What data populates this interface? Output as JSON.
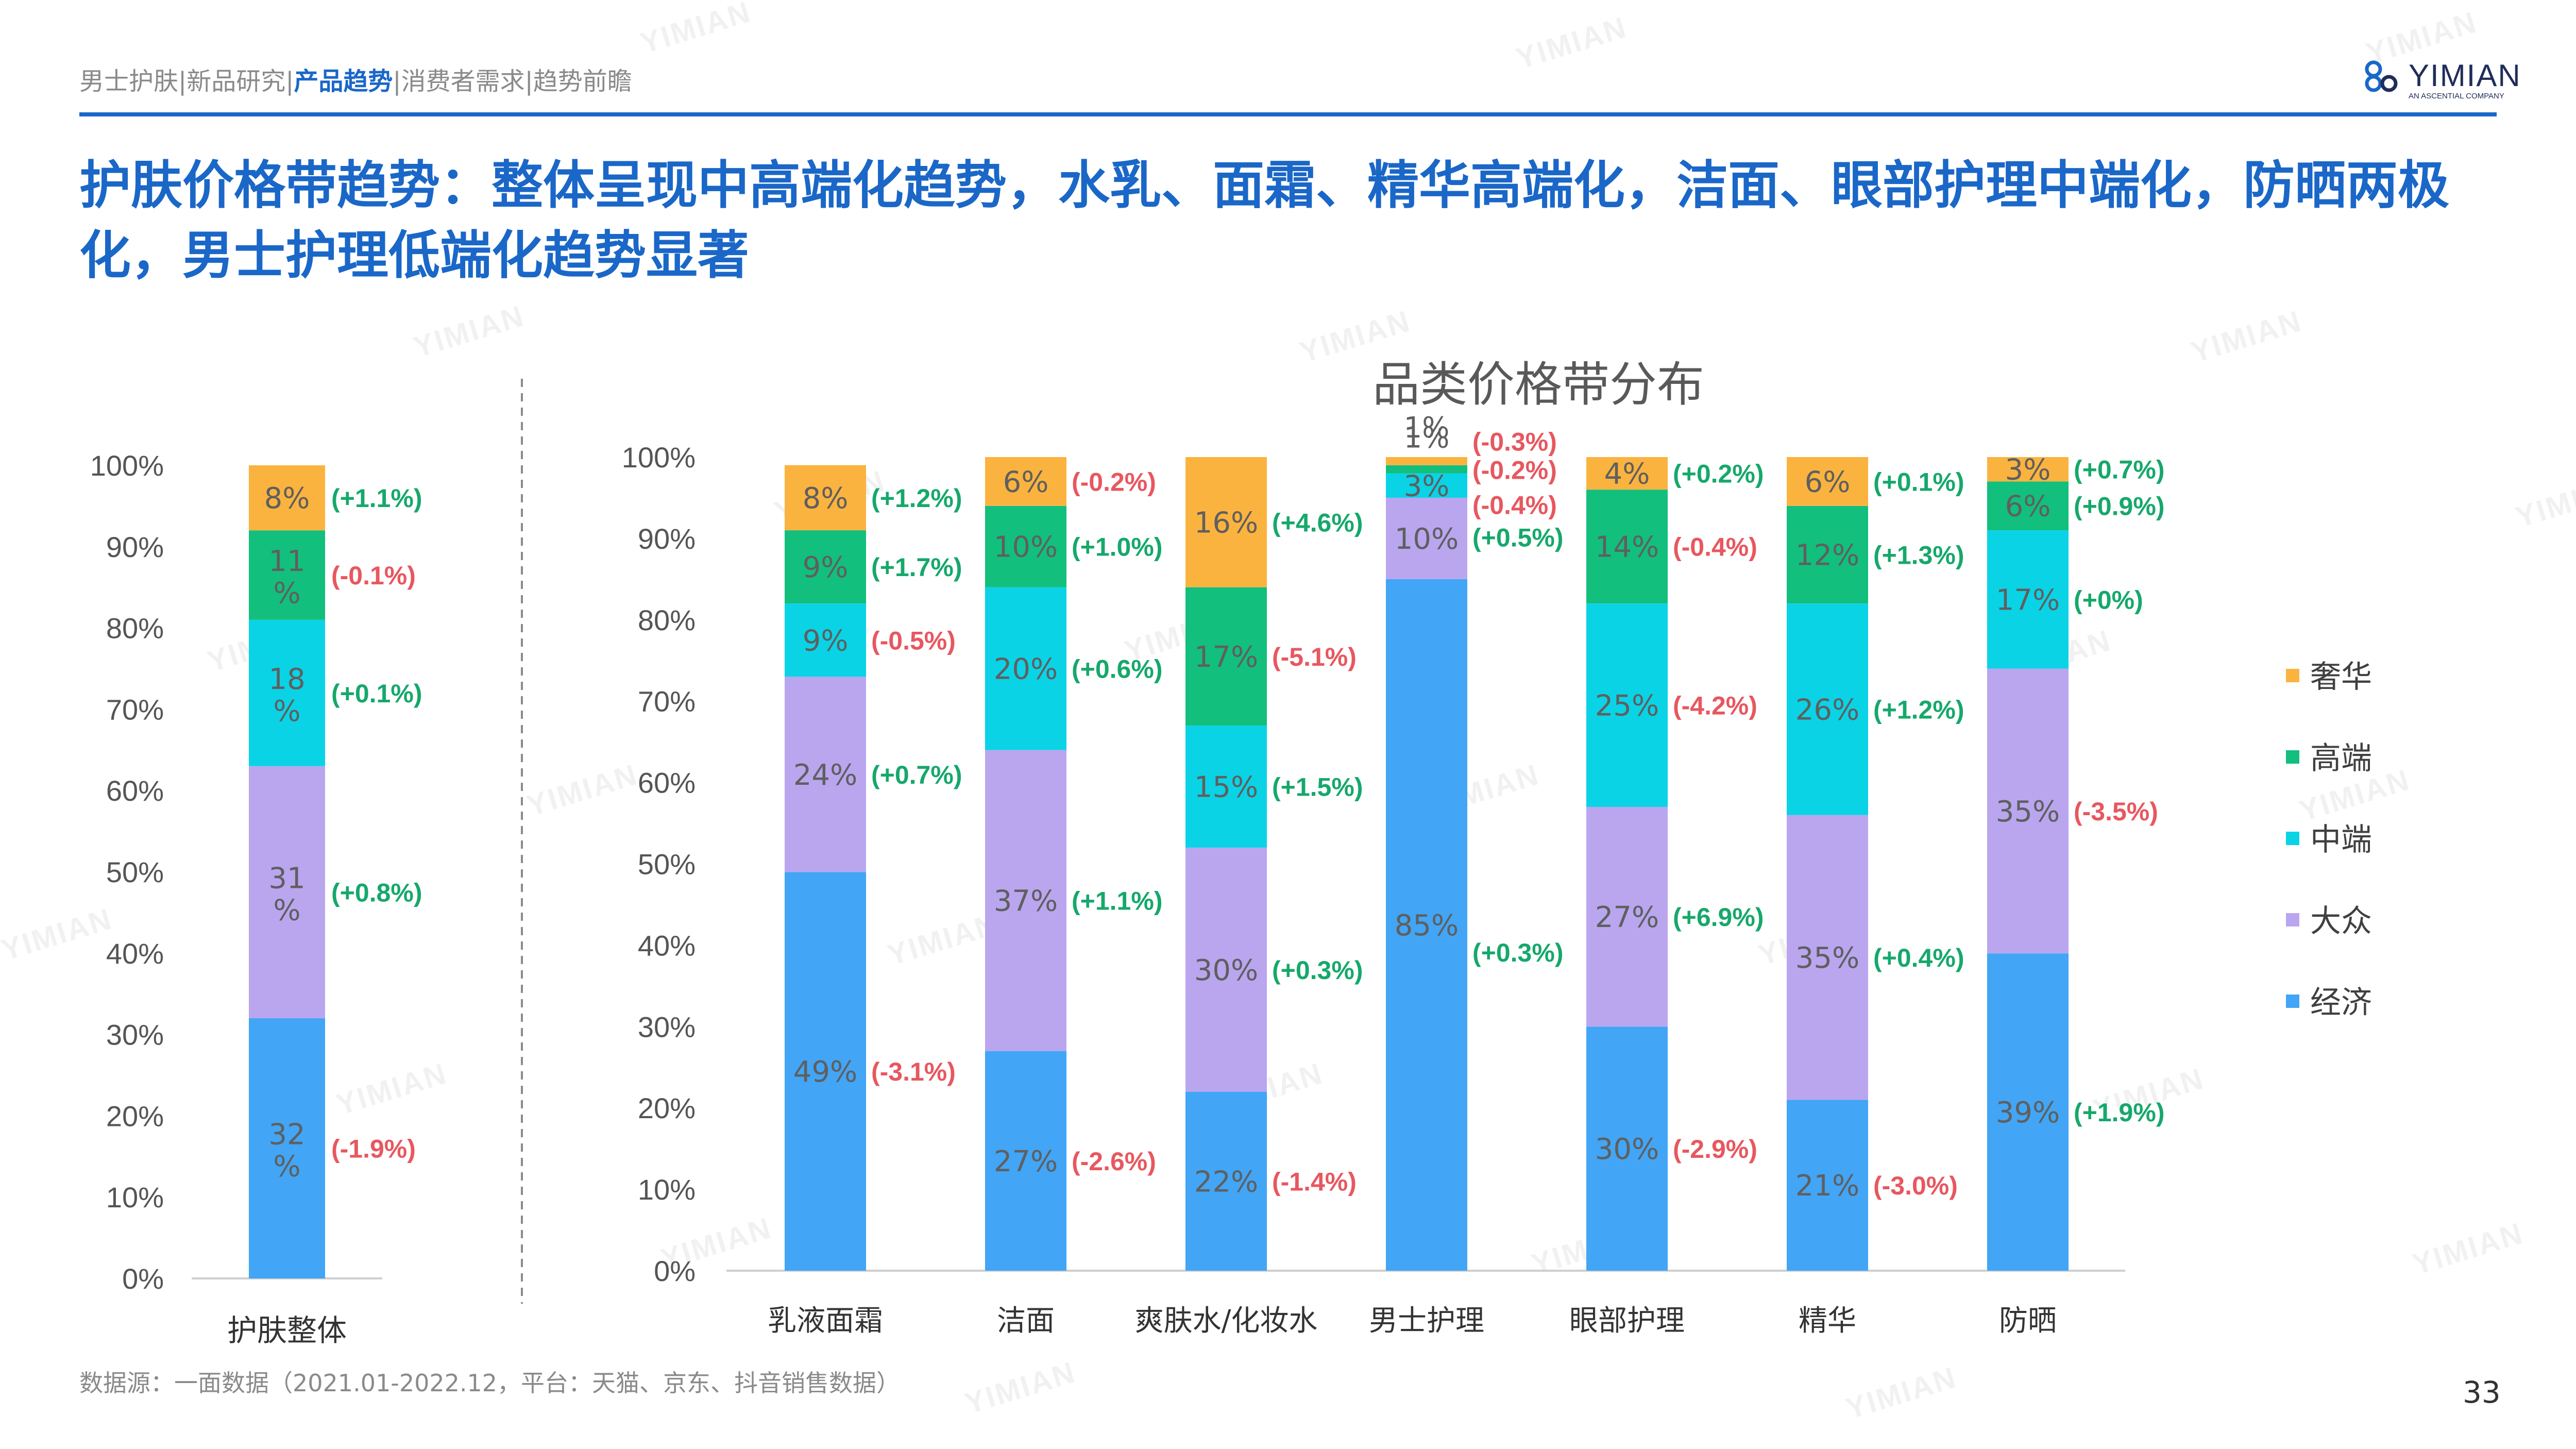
{
  "header": {
    "breadcrumb": [
      "男士护肤",
      "新品研究",
      "产品趋势",
      "消费者需求",
      "趋势前瞻"
    ],
    "breadcrumb_active_index": 2,
    "separator": "|",
    "logo_text": "YIMIAN",
    "logo_subtext": "AN ASCENTIAL COMPANY"
  },
  "title": "护肤价格带趋势：整体呈现中高端化趋势，水乳、面霜、精华高端化，洁面、眼部护理中端化，防晒两极化，男士护理低端化趋势显著",
  "watermark_text": "YIMIAN",
  "footer": {
    "source": "数据源：一面数据（2021.01-2022.12，平台：天猫、京东、抖音销售数据）",
    "page_number": "33"
  },
  "colors": {
    "accent": "#1a67c8",
    "positive": "#16a86b",
    "negative": "#e8575f",
    "segment_label": "#5f5f5f",
    "经济": "#42a5f5",
    "大众": "#b9a6ef",
    "中端": "#0ad3e6",
    "高端": "#12bf7d",
    "奢华": "#fbb33f"
  },
  "chart_data": [
    {
      "type": "bar",
      "stacked": true,
      "title": "",
      "categories": [
        "护肤整体"
      ],
      "ylim": [
        0,
        100
      ],
      "yticks": [
        "0%",
        "10%",
        "20%",
        "30%",
        "40%",
        "50%",
        "60%",
        "70%",
        "80%",
        "90%",
        "100%"
      ],
      "series": [
        {
          "name": "经济",
          "values": [
            32
          ],
          "labels": [
            "32%"
          ],
          "changes": [
            "(-1.9%)"
          ]
        },
        {
          "name": "大众",
          "values": [
            31
          ],
          "labels": [
            "31%"
          ],
          "changes": [
            "(+0.8%)"
          ]
        },
        {
          "name": "中端",
          "values": [
            18
          ],
          "labels": [
            "18%"
          ],
          "changes": [
            "(+0.1%)"
          ]
        },
        {
          "name": "高端",
          "values": [
            11
          ],
          "labels": [
            "11%"
          ],
          "changes": [
            "(-0.1%)"
          ]
        },
        {
          "name": "奢华",
          "values": [
            8
          ],
          "labels": [
            "8%"
          ],
          "changes": [
            "(+1.1%)"
          ]
        }
      ]
    },
    {
      "type": "bar",
      "stacked": true,
      "title": "品类价格带分布",
      "categories": [
        "乳液面霜",
        "洁面",
        "爽肤水/化妆水",
        "男士护理",
        "眼部护理",
        "精华",
        "防晒"
      ],
      "ylim": [
        0,
        100
      ],
      "yticks": [
        "0%",
        "10%",
        "20%",
        "30%",
        "40%",
        "50%",
        "60%",
        "70%",
        "80%",
        "90%",
        "100%"
      ],
      "legend": [
        "奢华",
        "高端",
        "中端",
        "大众",
        "经济"
      ],
      "legend_position": "right",
      "series": [
        {
          "name": "经济",
          "values": [
            49,
            27,
            22,
            85,
            30,
            21,
            39
          ],
          "labels": [
            "49%",
            "27%",
            "22%",
            "85%",
            "30%",
            "21%",
            "39%"
          ],
          "changes": [
            "(-3.1%)",
            "(-2.6%)",
            "(-1.4%)",
            "(+0.3%)",
            "(-2.9%)",
            "(-3.0%)",
            "(+1.9%)"
          ]
        },
        {
          "name": "大众",
          "values": [
            24,
            37,
            30,
            10,
            27,
            35,
            35
          ],
          "labels": [
            "24%",
            "37%",
            "30%",
            "10%",
            "27%",
            "35%",
            "35%"
          ],
          "changes": [
            "(+0.7%)",
            "(+1.1%)",
            "(+0.3%)",
            "(+0.5%)",
            "(+6.9%)",
            "(+0.4%)",
            "(-3.5%)"
          ]
        },
        {
          "name": "中端",
          "values": [
            9,
            20,
            15,
            3,
            25,
            26,
            17
          ],
          "labels": [
            "9%",
            "20%",
            "15%",
            "3%",
            "25%",
            "26%",
            "17%"
          ],
          "changes": [
            "(-0.5%)",
            "(+0.6%)",
            "(+1.5%)",
            "(-0.4%)",
            "(-4.2%)",
            "(+1.2%)",
            "(+0%)"
          ]
        },
        {
          "name": "高端",
          "values": [
            9,
            10,
            17,
            1,
            14,
            12,
            6
          ],
          "labels": [
            "9%",
            "10%",
            "17%",
            "1%",
            "14%",
            "12%",
            "6%"
          ],
          "changes": [
            "(+1.7%)",
            "(+1.0%)",
            "(-5.1%)",
            "(-0.2%)",
            "(-0.4%)",
            "(+1.3%)",
            "(+0.9%)"
          ]
        },
        {
          "name": "奢华",
          "values": [
            8,
            6,
            16,
            1,
            4,
            6,
            3
          ],
          "labels": [
            "8%",
            "6%",
            "16%",
            "1%",
            "4%",
            "6%",
            "3%"
          ],
          "changes": [
            "(+1.2%)",
            "(-0.2%)",
            "(+4.6%)",
            "(-0.3%)",
            "(+0.2%)",
            "(+0.1%)",
            "(+0.7%)"
          ]
        }
      ]
    }
  ]
}
